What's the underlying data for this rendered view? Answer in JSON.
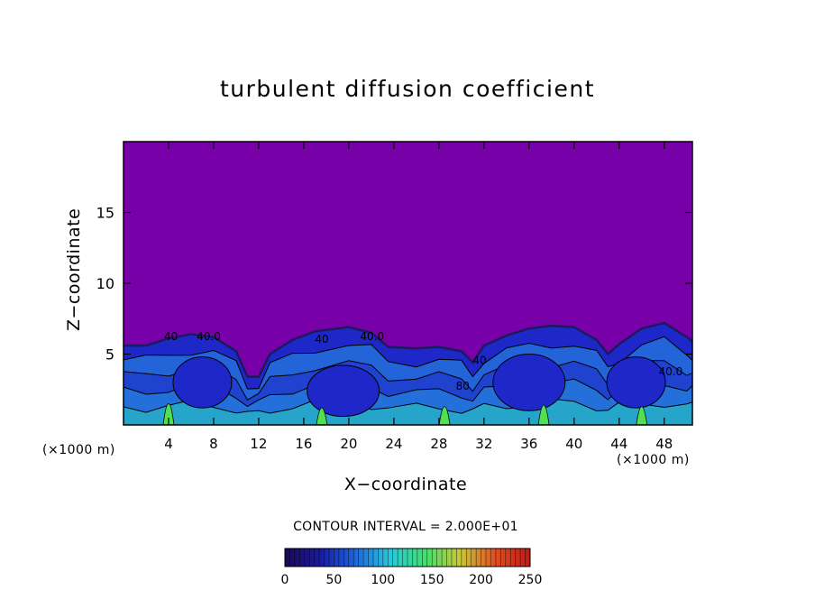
{
  "chart_data": {
    "type": "heatmap",
    "title": "turbulent diffusion coefficient",
    "xlabel": "X−coordinate",
    "ylabel": "Z−coordinate",
    "x_unit_left": "(×1000 m)",
    "x_unit_right": "(×1000 m)",
    "xlim": [
      0,
      50.5
    ],
    "ylim": [
      0,
      20
    ],
    "x_ticks": [
      4,
      8,
      12,
      16,
      20,
      24,
      28,
      32,
      36,
      40,
      44,
      48
    ],
    "y_ticks": [
      5,
      10,
      15
    ],
    "boundary_layer_top": [
      [
        0,
        5.6
      ],
      [
        2,
        5.6
      ],
      [
        4,
        6.1
      ],
      [
        6,
        6.4
      ],
      [
        8,
        6.2
      ],
      [
        10,
        5.2
      ],
      [
        11,
        3.4
      ],
      [
        12,
        3.4
      ],
      [
        13,
        5.0
      ],
      [
        15,
        6.0
      ],
      [
        17,
        6.6
      ],
      [
        20,
        6.9
      ],
      [
        22,
        6.5
      ],
      [
        23.5,
        5.5
      ],
      [
        26,
        5.4
      ],
      [
        28,
        5.5
      ],
      [
        30,
        5.2
      ],
      [
        31,
        4.4
      ],
      [
        32,
        5.6
      ],
      [
        34,
        6.3
      ],
      [
        36,
        6.8
      ],
      [
        38,
        7.0
      ],
      [
        40,
        6.9
      ],
      [
        42,
        6.0
      ],
      [
        43,
        5.0
      ],
      [
        44,
        5.7
      ],
      [
        46,
        6.8
      ],
      [
        48,
        7.2
      ],
      [
        50,
        6.2
      ],
      [
        50.5,
        5.9
      ]
    ],
    "contour_labels": [
      {
        "text": "40.0",
        "x": 6.5,
        "y": 6.0
      },
      {
        "text": "40.0",
        "x": 21.0,
        "y": 6.0
      },
      {
        "text": "40.0",
        "x": 47.5,
        "y": 3.5
      },
      {
        "text": "40",
        "x": 31.0,
        "y": 4.3
      },
      {
        "text": "40",
        "x": 3.6,
        "y": 6.0
      },
      {
        "text": "80",
        "x": 29.5,
        "y": 2.5
      },
      {
        "text": "40",
        "x": 17.0,
        "y": 5.8
      }
    ],
    "contour_interval_text": "CONTOUR INTERVAL = 2.000E+01",
    "colorbar": {
      "min": 0,
      "max": 250,
      "ticks": [
        0,
        50,
        100,
        150,
        200,
        250
      ],
      "colors": [
        "#1a0a50",
        "#1a1aa0",
        "#1e64dc",
        "#28c8dc",
        "#40e070",
        "#c8c838",
        "#e05020",
        "#c01818"
      ]
    },
    "colors": {
      "background_value": "#7800a8",
      "low": "#1e28c8",
      "mid": "#2896e6",
      "high": "#28d2be",
      "peak": "#50e050"
    }
  }
}
